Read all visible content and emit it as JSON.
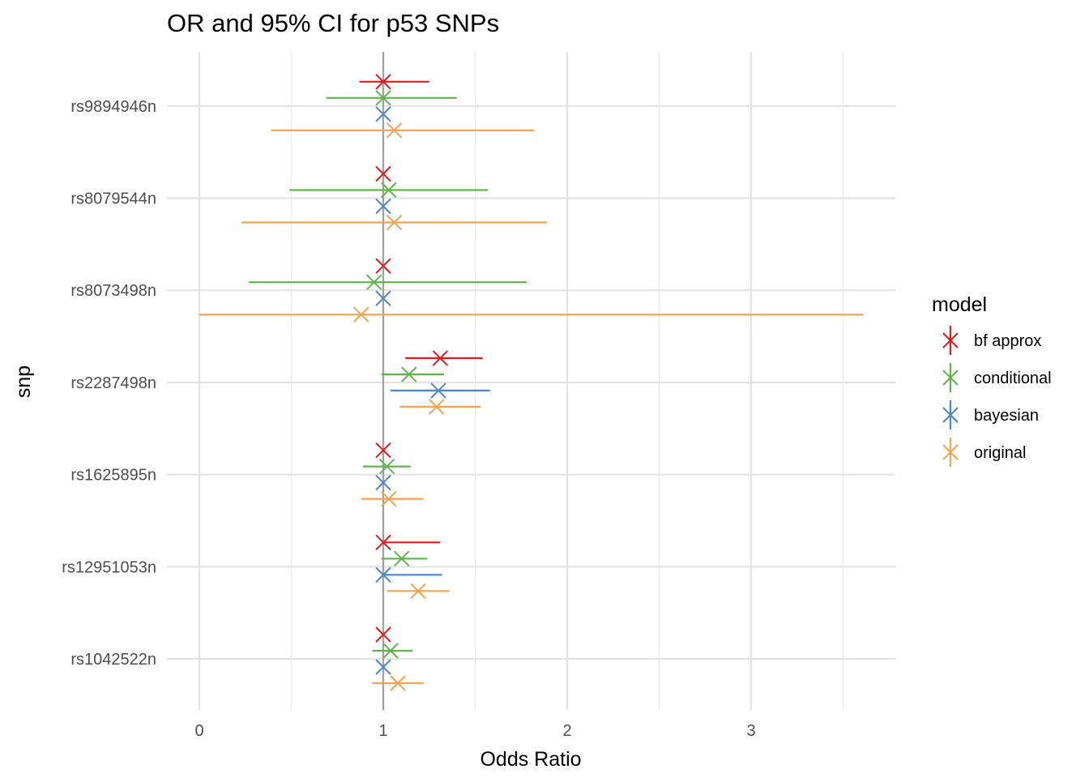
{
  "chart_data": {
    "type": "forest",
    "title": "OR and 95% CI for p53 SNPs",
    "xlabel": "Odds Ratio",
    "ylabel": "snp",
    "xlim": [
      0,
      3.8
    ],
    "x_ticks": [
      "0",
      "1",
      "2",
      "3"
    ],
    "reference_line": 1,
    "grid": true,
    "legend": {
      "title": "model",
      "position": "right",
      "entries": [
        "bf approx",
        "conditional",
        "bayesian",
        "original"
      ]
    },
    "categories": [
      "rs9894946n",
      "rs8079544n",
      "rs8073498n",
      "rs2287498n",
      "rs1625895n",
      "rs12951053n",
      "rs1042522n"
    ],
    "series": [
      {
        "name": "bf approx",
        "color": "#e41a1c",
        "points": [
          {
            "snp": "rs9894946n",
            "or": 1.0,
            "lo": 0.87,
            "hi": 1.25
          },
          {
            "snp": "rs8079544n",
            "or": 1.0,
            "lo": 1.0,
            "hi": 1.0
          },
          {
            "snp": "rs8073498n",
            "or": 1.0,
            "lo": 1.0,
            "hi": 1.0
          },
          {
            "snp": "rs2287498n",
            "or": 1.31,
            "lo": 1.12,
            "hi": 1.54
          },
          {
            "snp": "rs1625895n",
            "or": 1.0,
            "lo": 1.0,
            "hi": 1.0
          },
          {
            "snp": "rs12951053n",
            "or": 1.0,
            "lo": 1.0,
            "hi": 1.31
          },
          {
            "snp": "rs1042522n",
            "or": 1.0,
            "lo": 1.0,
            "hi": 1.0
          }
        ]
      },
      {
        "name": "conditional",
        "color": "#5fb54a",
        "points": [
          {
            "snp": "rs9894946n",
            "or": 1.0,
            "lo": 0.69,
            "hi": 1.4
          },
          {
            "snp": "rs8079544n",
            "or": 1.03,
            "lo": 0.49,
            "hi": 1.57
          },
          {
            "snp": "rs8073498n",
            "or": 0.95,
            "lo": 0.27,
            "hi": 1.78
          },
          {
            "snp": "rs2287498n",
            "or": 1.14,
            "lo": 0.99,
            "hi": 1.33
          },
          {
            "snp": "rs1625895n",
            "or": 1.02,
            "lo": 0.89,
            "hi": 1.15
          },
          {
            "snp": "rs12951053n",
            "or": 1.1,
            "lo": 0.99,
            "hi": 1.24
          },
          {
            "snp": "rs1042522n",
            "or": 1.04,
            "lo": 0.94,
            "hi": 1.16
          }
        ]
      },
      {
        "name": "bayesian",
        "color": "#4a86c8",
        "points": [
          {
            "snp": "rs9894946n",
            "or": 1.0,
            "lo": 1.0,
            "hi": 1.0
          },
          {
            "snp": "rs8079544n",
            "or": 1.0,
            "lo": 1.0,
            "hi": 1.0
          },
          {
            "snp": "rs8073498n",
            "or": 1.0,
            "lo": 1.0,
            "hi": 1.0
          },
          {
            "snp": "rs2287498n",
            "or": 1.3,
            "lo": 1.04,
            "hi": 1.58
          },
          {
            "snp": "rs1625895n",
            "or": 1.0,
            "lo": 1.0,
            "hi": 1.0
          },
          {
            "snp": "rs12951053n",
            "or": 1.0,
            "lo": 1.0,
            "hi": 1.32
          },
          {
            "snp": "rs1042522n",
            "or": 1.0,
            "lo": 1.0,
            "hi": 1.0
          }
        ]
      },
      {
        "name": "original",
        "color": "#f7a24f",
        "points": [
          {
            "snp": "rs9894946n",
            "or": 1.06,
            "lo": 0.39,
            "hi": 1.82
          },
          {
            "snp": "rs8079544n",
            "or": 1.06,
            "lo": 0.23,
            "hi": 1.89
          },
          {
            "snp": "rs8073498n",
            "or": 0.88,
            "lo": 0.0,
            "hi": 3.61
          },
          {
            "snp": "rs2287498n",
            "or": 1.29,
            "lo": 1.09,
            "hi": 1.53
          },
          {
            "snp": "rs1625895n",
            "or": 1.03,
            "lo": 0.88,
            "hi": 1.22
          },
          {
            "snp": "rs12951053n",
            "or": 1.19,
            "lo": 1.02,
            "hi": 1.36
          },
          {
            "snp": "rs1042522n",
            "or": 1.08,
            "lo": 0.94,
            "hi": 1.22
          }
        ]
      }
    ]
  }
}
